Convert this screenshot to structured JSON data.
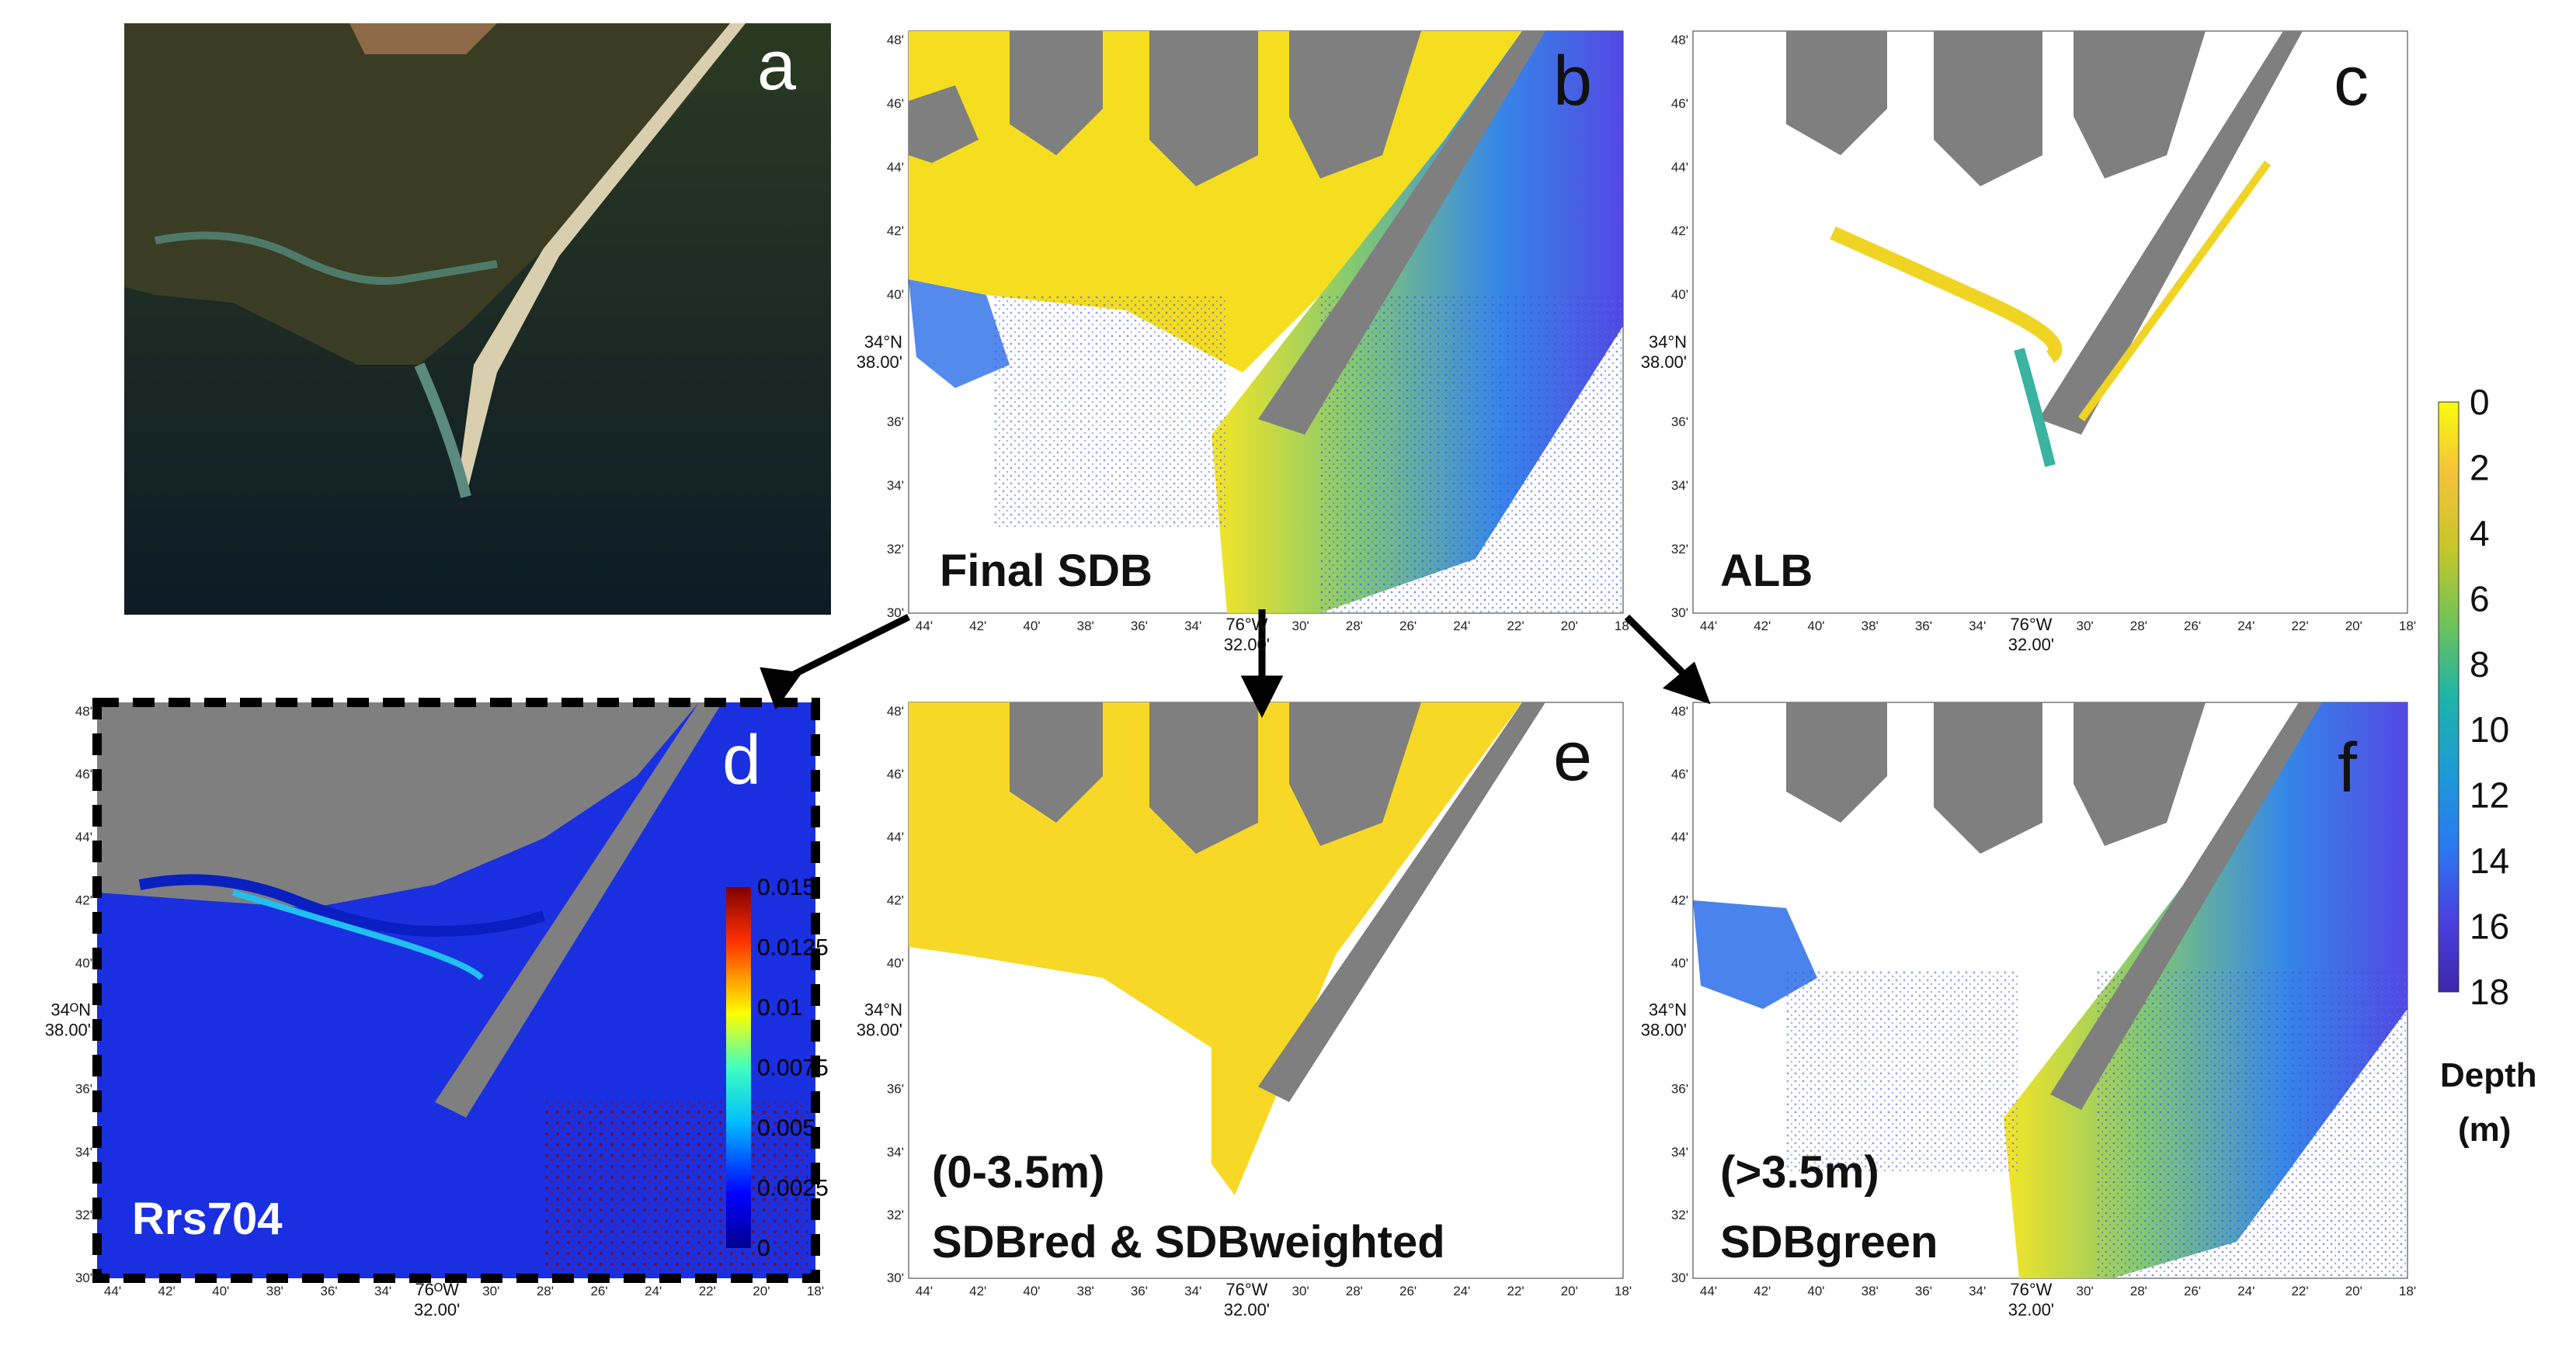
{
  "panels": {
    "a": {
      "letter": "a"
    },
    "b": {
      "letter": "b",
      "label": "Final SDB"
    },
    "c": {
      "letter": "c",
      "label": "ALB"
    },
    "d": {
      "letter": "d",
      "label": "Rrs704"
    },
    "e": {
      "letter": "e",
      "label_line1": "(0-3.5m)",
      "label_line2": "SDBred & SDBweighted"
    },
    "f": {
      "letter": "f",
      "label_line1": "(>3.5m)",
      "label_line2": "SDBgreen"
    }
  },
  "axes": {
    "y_ticks": [
      "48'",
      "46'",
      "44'",
      "42'",
      "40'",
      "36'",
      "34'",
      "32'",
      "30'"
    ],
    "y_center_deg": "34°N",
    "y_center_min": "38.00'",
    "y_center_deg_d": "34ᴼN",
    "x_ticks": [
      "44'",
      "42'",
      "40'",
      "38'",
      "36'",
      "34'",
      "30'",
      "28'",
      "26'",
      "24'",
      "22'",
      "20'",
      "18'"
    ],
    "x_ticks_b": [
      "44'",
      "42'",
      "40'",
      "38'",
      "36'",
      "34'",
      "30'",
      "28'",
      "26'",
      "24'",
      "22'",
      "20'",
      "18'"
    ],
    "x_center_deg": "76°W",
    "x_center_deg_d": "76ᴼW",
    "x_center_min": "32.00'"
  },
  "depth_colorbar": {
    "ticks": [
      "0",
      "2",
      "4",
      "6",
      "8",
      "10",
      "12",
      "14",
      "16",
      "18"
    ],
    "title_line1": "Depth",
    "title_line2": "(m)",
    "colors": [
      "#f9fb0e",
      "#f5c23a",
      "#c5c62a",
      "#6bc35a",
      "#1fb3a9",
      "#1d9ad6",
      "#2a7aef",
      "#3a5ef5",
      "#4a3fe0",
      "#3e26a8"
    ]
  },
  "rrs_colorbar": {
    "ticks": [
      "0.015",
      "0.0125",
      "0.01",
      "0.0075",
      "0.005",
      "0.0025",
      "0"
    ]
  },
  "colors": {
    "land_gray": "#7f7f7f",
    "shallow_yellow": "#f7dd22",
    "rrs_blue": "#1a2fe0",
    "ocean_dark": "#0b1a24"
  }
}
